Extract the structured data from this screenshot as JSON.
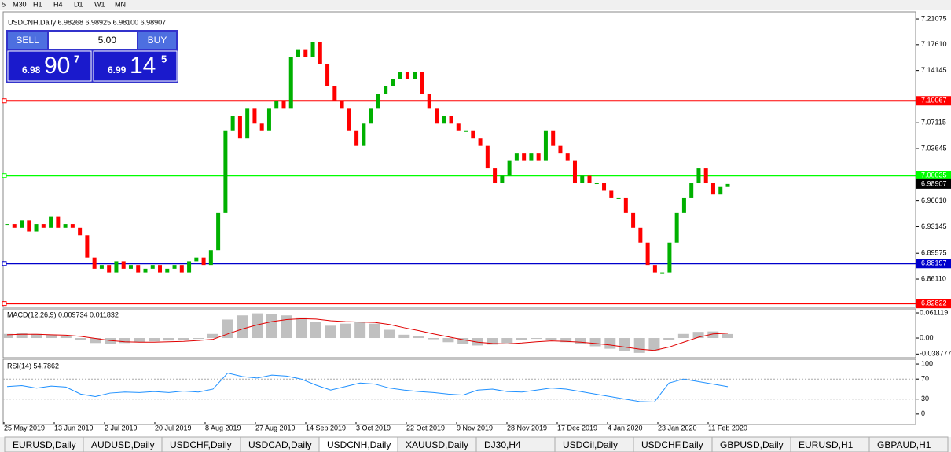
{
  "toolbar": [
    "5",
    "M30",
    "H1",
    "H4",
    "D1",
    "W1",
    "MN"
  ],
  "chart": {
    "symbol_info": "USDCNH,Daily 6.98268 6.98925 6.98100 6.98907",
    "trade_panel": {
      "sell": "SELL",
      "lots": "5.00",
      "buy": "BUY",
      "bid_big": "6.98",
      "bid_pips": "90",
      "bid_frac": "7",
      "ask_big": "6.99",
      "ask_pips": "14",
      "ask_frac": "5"
    },
    "ylim": [
      6.8231,
      7.2203
    ],
    "yticks": [
      7.21075,
      {
        "value": 7.1761,
        "label": "7.17610"
      },
      7.14145,
      7.07115,
      7.03645,
      {
        "value": 6.9661,
        "label": "6.96610"
      },
      6.93145,
      6.89575,
      {
        "value": 6.8611,
        "label": "6.86110"
      }
    ],
    "levels": [
      {
        "value": 7.10067,
        "color": "#ff0000"
      },
      {
        "value": 7.00035,
        "color": "#00ff00"
      },
      {
        "value": 6.88197,
        "color": "#0000cc"
      },
      {
        "value": 6.82822,
        "color": "#ff0000"
      }
    ],
    "current_price": 6.98907,
    "up_color": "#00b000",
    "down_color": "#ff0000",
    "closes": [
      6.935,
      6.93,
      6.94,
      6.925,
      6.935,
      6.93,
      6.945,
      6.93,
      6.935,
      6.93,
      6.92,
      6.89,
      6.875,
      6.88,
      6.87,
      6.885,
      6.875,
      6.88,
      6.87,
      6.875,
      6.88,
      6.87,
      6.875,
      6.88,
      6.87,
      6.885,
      6.89,
      6.88,
      6.9,
      6.95,
      7.06,
      7.08,
      7.05,
      7.09,
      7.07,
      7.06,
      7.09,
      7.1,
      7.09,
      7.16,
      7.17,
      7.16,
      7.18,
      7.15,
      7.12,
      7.1,
      7.09,
      7.06,
      7.04,
      7.07,
      7.09,
      7.11,
      7.12,
      7.13,
      7.14,
      7.13,
      7.14,
      7.11,
      7.09,
      7.07,
      7.08,
      7.07,
      7.06,
      7.06,
      7.05,
      7.04,
      7.01,
      6.99,
      7,
      7.02,
      7.03,
      7.02,
      7.03,
      7.02,
      7.06,
      7.04,
      7.03,
      7.02,
      6.99,
      7,
      6.99,
      6.99,
      6.98,
      6.97,
      6.97,
      6.95,
      6.93,
      6.91,
      6.88,
      6.87,
      6.87,
      6.91,
      6.95,
      6.97,
      6.99,
      7.01,
      6.99,
      6.975,
      6.985,
      6.98907
    ],
    "dates": [
      "25 May 2019",
      "13 Jun 2019",
      "2 Jul 2019",
      "20 Jul 2019",
      "8 Aug 2019",
      "27 Aug 2019",
      "14 Sep 2019",
      "3 Oct 2019",
      "22 Oct 2019",
      "9 Nov 2019",
      "28 Nov 2019",
      "17 Dec 2019",
      "4 Jan 2020",
      "23 Jan 2020",
      "11 Feb 2020"
    ]
  },
  "macd": {
    "label": "MACD(12,26,9) 0.009734 0.011832",
    "ylim": [
      -0.0477,
      0.0707
    ],
    "yticks": [
      0.061119,
      {
        "value": 0,
        "label": "0.00"
      },
      -0.038777
    ],
    "histogram": [
      0.01,
      0.012,
      0.01,
      0.008,
      0.005,
      -0.005,
      -0.012,
      -0.015,
      -0.012,
      -0.01,
      -0.008,
      -0.006,
      -0.004,
      -0.002,
      0.01,
      0.045,
      0.055,
      0.06,
      0.058,
      0.055,
      0.05,
      0.04,
      0.03,
      0.035,
      0.04,
      0.035,
      0.02,
      0.008,
      0.004,
      -0.003,
      -0.01,
      -0.015,
      -0.018,
      -0.016,
      -0.012,
      -0.005,
      -0.002,
      -0.004,
      -0.01,
      -0.015,
      -0.02,
      -0.026,
      -0.032,
      -0.036,
      -0.03,
      -0.005,
      0.01,
      0.015,
      0.016,
      0.009734
    ],
    "signal": [
      0.008,
      0.009,
      0.009,
      0.008,
      0.007,
      0.004,
      -0.001,
      -0.006,
      -0.009,
      -0.01,
      -0.01,
      -0.009,
      -0.008,
      -0.006,
      -0.003,
      0.01,
      0.022,
      0.032,
      0.04,
      0.045,
      0.047,
      0.046,
      0.042,
      0.04,
      0.039,
      0.038,
      0.033,
      0.025,
      0.018,
      0.01,
      0.003,
      -0.004,
      -0.01,
      -0.013,
      -0.014,
      -0.012,
      -0.009,
      -0.007,
      -0.008,
      -0.01,
      -0.013,
      -0.017,
      -0.022,
      -0.027,
      -0.03,
      -0.022,
      -0.01,
      0.002,
      0.01,
      0.011832
    ]
  },
  "rsi": {
    "label": "RSI(14) 54.7862",
    "ylim": [
      -20.6,
      109.5
    ],
    "yticks": [
      100,
      70,
      30,
      0
    ],
    "values": [
      55,
      57,
      52,
      56,
      54,
      40,
      35,
      42,
      44,
      43,
      45,
      43,
      46,
      44,
      50,
      82,
      75,
      72,
      78,
      76,
      70,
      58,
      48,
      55,
      62,
      60,
      52,
      48,
      45,
      43,
      40,
      38,
      48,
      50,
      45,
      44,
      48,
      52,
      50,
      45,
      40,
      35,
      30,
      25,
      24,
      62,
      70,
      65,
      60,
      54.7862
    ]
  },
  "tabs": [
    "EURUSD,Daily",
    "AUDUSD,Daily",
    "USDCHF,Daily",
    "USDCAD,Daily",
    "USDCNH,Daily",
    "XAUUSD,Daily",
    "DJ30,H4",
    "USDOil,Daily",
    "USDCHF,Daily",
    "GBPUSD,Daily",
    "EURUSD,H1",
    "GBPAUD,H1"
  ],
  "active_tab": 4
}
